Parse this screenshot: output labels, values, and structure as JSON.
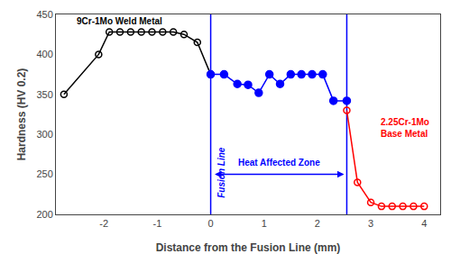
{
  "chart_data": {
    "type": "line",
    "xlabel": "Distance from the Fusion Line (mm)",
    "ylabel": "Hardness (HV 0.2)",
    "xlim": [
      -2.9,
      4.3
    ],
    "ylim": [
      200,
      450
    ],
    "xticks": [
      -2,
      -1,
      0,
      1,
      2,
      3,
      4
    ],
    "yticks": [
      200,
      250,
      300,
      350,
      400,
      450
    ],
    "grid": false,
    "legend": false,
    "series": [
      {
        "x": [
          -2.75,
          -2.1,
          -1.9,
          -1.7,
          -1.5,
          -1.3,
          -1.1,
          -0.9,
          -0.7,
          -0.5,
          -0.25,
          0.0
        ],
        "values": [
          350,
          400,
          428,
          428,
          428,
          428,
          428,
          428,
          428,
          425,
          415,
          375
        ],
        "color": "#000000",
        "marker": "open"
      },
      {
        "x": [
          0.0,
          0.25,
          0.5,
          0.7,
          0.9,
          1.1,
          1.3,
          1.5,
          1.7,
          1.9,
          2.1,
          2.3,
          2.55
        ],
        "values": [
          375,
          375,
          363,
          362,
          352,
          375,
          363,
          375,
          375,
          375,
          375,
          342,
          342
        ],
        "color": "#0000FF",
        "marker": "filled"
      },
      {
        "x": [
          2.55,
          2.75,
          3.0,
          3.2,
          3.4,
          3.6,
          3.8,
          4.0
        ],
        "values": [
          330,
          240,
          215,
          210,
          210,
          210,
          210,
          210
        ],
        "color": "#FF0000",
        "marker": "open"
      }
    ],
    "vlines": [
      {
        "x": 0.0,
        "color": "#0000FF",
        "label": "Fusion Line",
        "label_x": 0.07,
        "label_y": 218
      },
      {
        "x": 2.55,
        "color": "#0000FF"
      }
    ],
    "span": {
      "text": "Heat Affected Zone",
      "x_start": 0.05,
      "x_end": 2.5,
      "y": 250,
      "text_x": 1.275,
      "text_y": 256,
      "color": "#0000FF"
    },
    "annotations": [
      {
        "text": "9Cr-1Mo Weld Metal",
        "x": -2.55,
        "y": 442,
        "color": "#000000"
      },
      {
        "text": "2.25Cr-1Mo\nBase Metal",
        "x": 3.15,
        "y": 308,
        "color": "#FF0000"
      }
    ]
  }
}
